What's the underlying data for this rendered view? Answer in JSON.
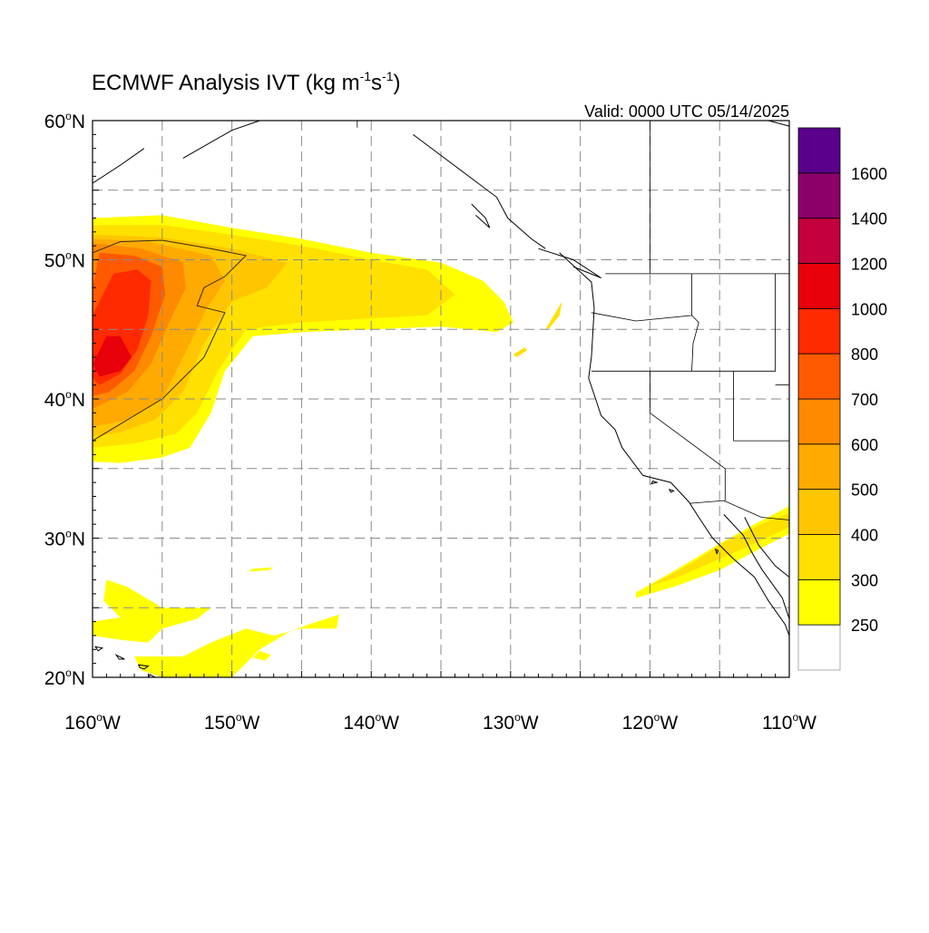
{
  "title": {
    "main": "ECMWF Analysis IVT (kg m",
    "exp1": "-1",
    "mid": "s",
    "exp2": "-1",
    "close": ")"
  },
  "valid_label": "Valid: 0000 UTC 05/14/2025",
  "map": {
    "lon_range": [
      -160,
      -110
    ],
    "lat_range": [
      20,
      60
    ],
    "grid_lons": [
      -155,
      -150,
      -145,
      -140,
      -135,
      -130,
      -125,
      -120,
      -115
    ],
    "grid_lats": [
      25,
      30,
      35,
      40,
      45,
      50,
      55
    ],
    "grid_style": "dashed",
    "lat_ticks": [
      {
        "lat": 60,
        "deg": "60",
        "suffix": "N"
      },
      {
        "lat": 50,
        "deg": "50",
        "suffix": "N"
      },
      {
        "lat": 40,
        "deg": "40",
        "suffix": "N"
      },
      {
        "lat": 30,
        "deg": "30",
        "suffix": "N"
      },
      {
        "lat": 20,
        "deg": "20",
        "suffix": "N"
      }
    ],
    "lon_ticks": [
      {
        "lon": -160,
        "deg": "160",
        "suffix": "W"
      },
      {
        "lon": -150,
        "deg": "150",
        "suffix": "W"
      },
      {
        "lon": -140,
        "deg": "140",
        "suffix": "W"
      },
      {
        "lon": -130,
        "deg": "130",
        "suffix": "W"
      },
      {
        "lon": -120,
        "deg": "120",
        "suffix": "W"
      },
      {
        "lon": -110,
        "deg": "110",
        "suffix": "W"
      }
    ]
  },
  "colorbar": {
    "levels": [
      "250",
      "300",
      "400",
      "500",
      "600",
      "700",
      "800",
      "1000",
      "1200",
      "1400",
      "1600"
    ],
    "colors_bottom_to_top": [
      "#ffffff",
      "#ffff00",
      "#ffe000",
      "#ffc600",
      "#ffaa00",
      "#ff8a00",
      "#ff5a00",
      "#ff2a00",
      "#e8000a",
      "#c4003c",
      "#8c006a",
      "#5a008c"
    ]
  },
  "ivt_regions": [
    {
      "name": "east-pacific-plume-300",
      "color": "#ffff00",
      "points": [
        [
          -160,
          53
        ],
        [
          -155,
          53.2
        ],
        [
          -150,
          52.3
        ],
        [
          -145,
          51.5
        ],
        [
          -140,
          50.5
        ],
        [
          -135,
          49.8
        ],
        [
          -132,
          48.5
        ],
        [
          -130.5,
          47
        ],
        [
          -129.8,
          45.5
        ],
        [
          -131,
          44.8
        ],
        [
          -135,
          45.2
        ],
        [
          -140,
          45
        ],
        [
          -145,
          44.8
        ],
        [
          -148.5,
          44.5
        ],
        [
          -150.5,
          42
        ],
        [
          -151.5,
          39
        ],
        [
          -153,
          36.5
        ],
        [
          -155,
          35.8
        ],
        [
          -158,
          35.4
        ],
        [
          -160,
          35.5
        ]
      ]
    },
    {
      "name": "east-pacific-plume-400",
      "color": "#ffe000",
      "points": [
        [
          -160,
          52.5
        ],
        [
          -155,
          52.5
        ],
        [
          -150,
          51.8
        ],
        [
          -145,
          51
        ],
        [
          -140,
          50
        ],
        [
          -136,
          49.3
        ],
        [
          -134,
          47.5
        ],
        [
          -136,
          46
        ],
        [
          -140,
          45.8
        ],
        [
          -145,
          45.5
        ],
        [
          -149,
          45
        ],
        [
          -151,
          42
        ],
        [
          -152.5,
          39
        ],
        [
          -154,
          37.5
        ],
        [
          -157,
          36.8
        ],
        [
          -160,
          36.5
        ]
      ]
    },
    {
      "name": "east-pacific-plume-500",
      "color": "#ffc600",
      "points": [
        [
          -160,
          51.8
        ],
        [
          -155,
          51.6
        ],
        [
          -150,
          50.8
        ],
        [
          -146,
          49.8
        ],
        [
          -147.5,
          48
        ],
        [
          -150,
          47
        ],
        [
          -152,
          44
        ],
        [
          -153.5,
          40.5
        ],
        [
          -155.5,
          38.5
        ],
        [
          -158,
          37.6
        ],
        [
          -160,
          37.3
        ]
      ]
    },
    {
      "name": "east-pacific-plume-600",
      "color": "#ffaa00",
      "points": [
        [
          -160,
          51.5
        ],
        [
          -156,
          51.3
        ],
        [
          -151.5,
          50.3
        ],
        [
          -150.5,
          48.5
        ],
        [
          -151.8,
          46.5
        ],
        [
          -153.5,
          43
        ],
        [
          -155,
          40
        ],
        [
          -157.5,
          38.5
        ],
        [
          -160,
          38
        ]
      ]
    },
    {
      "name": "east-pacific-plume-700",
      "color": "#ff8a00",
      "points": [
        [
          -160,
          51.2
        ],
        [
          -156.5,
          50.8
        ],
        [
          -153.5,
          49.8
        ],
        [
          -153.3,
          48
        ],
        [
          -154.5,
          45.5
        ],
        [
          -155.8,
          42.5
        ],
        [
          -157.5,
          40.5
        ],
        [
          -160,
          39.3
        ]
      ]
    },
    {
      "name": "east-pacific-plume-800",
      "color": "#ff5a00",
      "points": [
        [
          -159.5,
          50.5
        ],
        [
          -157,
          50.3
        ],
        [
          -155,
          49.5
        ],
        [
          -154.8,
          47.5
        ],
        [
          -155.8,
          44.5
        ],
        [
          -157,
          42
        ],
        [
          -158.8,
          40.5
        ],
        [
          -160,
          40.2
        ],
        [
          -160,
          48
        ]
      ]
    },
    {
      "name": "east-pacific-plume-1000",
      "color": "#ff2a00",
      "points": [
        [
          -158.5,
          49
        ],
        [
          -156.8,
          49.3
        ],
        [
          -155.8,
          48.5
        ],
        [
          -156,
          46
        ],
        [
          -156.8,
          43.5
        ],
        [
          -158,
          41.8
        ],
        [
          -159.5,
          41
        ],
        [
          -160,
          41.5
        ],
        [
          -160,
          46
        ]
      ]
    },
    {
      "name": "east-pacific-plume-1200",
      "color": "#e8000a",
      "points": [
        [
          -159,
          44.5
        ],
        [
          -158,
          44.5
        ],
        [
          -157.2,
          43
        ],
        [
          -158,
          42
        ],
        [
          -159.5,
          41.6
        ],
        [
          -160,
          42.5
        ]
      ]
    },
    {
      "name": "offshore-streak-1",
      "color": "#ffe000",
      "points": [
        [
          -127.5,
          45
        ],
        [
          -126.6,
          46.5
        ],
        [
          -126.3,
          47
        ],
        [
          -126.5,
          46
        ],
        [
          -127.2,
          45.1
        ]
      ]
    },
    {
      "name": "offshore-streak-2",
      "color": "#ffe000",
      "points": [
        [
          -129.8,
          43.2
        ],
        [
          -129,
          43.7
        ],
        [
          -128.8,
          43.5
        ],
        [
          -129.6,
          43
        ]
      ]
    },
    {
      "name": "baja-plume-300",
      "color": "#ffff00",
      "points": [
        [
          -121,
          26.1
        ],
        [
          -118,
          27.8
        ],
        [
          -115,
          29.6
        ],
        [
          -112.5,
          31
        ],
        [
          -110,
          32.3
        ],
        [
          -110,
          30.3
        ],
        [
          -112,
          29.3
        ],
        [
          -115,
          27.7
        ],
        [
          -118,
          26.6
        ],
        [
          -121,
          25.7
        ]
      ]
    },
    {
      "name": "baja-plume-400",
      "color": "#ffe000",
      "points": [
        [
          -120,
          26.6
        ],
        [
          -117,
          28.2
        ],
        [
          -114.5,
          29.8
        ],
        [
          -112,
          31
        ],
        [
          -110,
          31.8
        ],
        [
          -110,
          30.8
        ],
        [
          -112.5,
          29.6
        ],
        [
          -115,
          28.5
        ],
        [
          -118,
          27.2
        ]
      ]
    },
    {
      "name": "hawaii-moisture-1",
      "color": "#ffff00",
      "points": [
        [
          -159,
          27
        ],
        [
          -157.5,
          26.5
        ],
        [
          -155,
          25
        ],
        [
          -151.5,
          25
        ],
        [
          -152.5,
          24.2
        ],
        [
          -155,
          23.5
        ],
        [
          -156,
          22.5
        ],
        [
          -158,
          22.7
        ],
        [
          -160,
          23
        ],
        [
          -160,
          24
        ],
        [
          -158,
          24.3
        ],
        [
          -159.2,
          25.5
        ]
      ]
    },
    {
      "name": "hawaii-moisture-2",
      "color": "#ffff00",
      "points": [
        [
          -157,
          21.5
        ],
        [
          -153.5,
          21.5
        ],
        [
          -151.5,
          22.5
        ],
        [
          -149,
          23.5
        ],
        [
          -147,
          23
        ],
        [
          -145,
          23.5
        ],
        [
          -142.5,
          23.5
        ],
        [
          -142.3,
          24.5
        ],
        [
          -144.5,
          23.8
        ],
        [
          -146,
          23.2
        ],
        [
          -148,
          22
        ],
        [
          -150,
          20
        ],
        [
          -155,
          20
        ],
        [
          -156.5,
          20.5
        ]
      ]
    },
    {
      "name": "hawaii-moisture-3",
      "color": "#ffff00",
      "points": [
        [
          -148.5,
          21.4
        ],
        [
          -148,
          21.9
        ],
        [
          -147.2,
          21.6
        ],
        [
          -147.6,
          21.2
        ]
      ]
    },
    {
      "name": "hawaii-moisture-4",
      "color": "#ffff00",
      "points": [
        [
          -148.5,
          27.8
        ],
        [
          -147,
          27.9
        ],
        [
          -147.3,
          27.7
        ],
        [
          -148.8,
          27.6
        ]
      ]
    }
  ],
  "ivt_contours": [
    [
      [
        -160,
        37
      ],
      [
        -155,
        40
      ],
      [
        -152,
        43
      ],
      [
        -150.5,
        46.2
      ],
      [
        -152.5,
        46.7
      ],
      [
        -152,
        48
      ],
      [
        -150.5,
        48.8
      ],
      [
        -149,
        50.3
      ],
      [
        -151.5,
        50.8
      ],
      [
        -155,
        51.4
      ],
      [
        -158,
        51.3
      ],
      [
        -160,
        50.5
      ]
    ]
  ],
  "coastlines": [
    [
      [
        -126.5,
        50.5
      ],
      [
        -124.2,
        48.4
      ],
      [
        -124,
        46.5
      ],
      [
        -124.2,
        43
      ],
      [
        -124.4,
        41.5
      ],
      [
        -124,
        40.3
      ],
      [
        -123.5,
        38.8
      ],
      [
        -122.5,
        37.8
      ],
      [
        -122,
        36.5
      ],
      [
        -120.5,
        34.5
      ],
      [
        -118.5,
        34
      ],
      [
        -117.2,
        32.6
      ],
      [
        -116.5,
        31.5
      ],
      [
        -115.5,
        30
      ],
      [
        -114,
        28.5
      ],
      [
        -112.5,
        27.2
      ],
      [
        -111.5,
        25.5
      ],
      [
        -110.3,
        23.8
      ],
      [
        -110,
        23
      ]
    ],
    [
      [
        -114.7,
        31.7
      ],
      [
        -113.3,
        30.2
      ],
      [
        -112.7,
        29
      ],
      [
        -112,
        27.8
      ],
      [
        -110.5,
        25.7
      ],
      [
        -110,
        24.2
      ]
    ],
    [
      [
        -113.2,
        31.5
      ],
      [
        -112.2,
        29.5
      ],
      [
        -111,
        28
      ],
      [
        -110,
        27.2
      ]
    ],
    [
      [
        -153.5,
        57.3
      ],
      [
        -150,
        59.3
      ],
      [
        -148,
        60
      ]
    ],
    [
      [
        -160,
        55.5
      ],
      [
        -158,
        56.8
      ],
      [
        -156.3,
        58
      ]
    ],
    [
      [
        -137,
        59
      ],
      [
        -135,
        57.5
      ],
      [
        -133,
        56
      ],
      [
        -131,
        54.5
      ],
      [
        -130.2,
        53
      ],
      [
        -128.5,
        51.5
      ],
      [
        -127.5,
        50.8
      ]
    ],
    [
      [
        -128,
        50.8
      ],
      [
        -125.5,
        50
      ],
      [
        -123.5,
        48.7
      ],
      [
        -125.5,
        49.5
      ]
    ],
    [
      [
        -132.8,
        54
      ],
      [
        -131.8,
        53
      ],
      [
        -131.5,
        52.3
      ],
      [
        -132.5,
        53.2
      ]
    ],
    [
      [
        -111.5,
        60
      ],
      [
        -110,
        59.6
      ]
    ]
  ],
  "borders": [
    [
      [
        -123.2,
        49
      ],
      [
        -110,
        49
      ]
    ],
    [
      [
        -141,
        60
      ],
      [
        -141,
        59.5
      ]
    ],
    [
      [
        -117.1,
        32.5
      ],
      [
        -114.7,
        32.7
      ],
      [
        -112,
        31.5
      ],
      [
        -110,
        31.3
      ]
    ],
    [
      [
        -124.2,
        46.2
      ],
      [
        -121,
        45.6
      ],
      [
        -117,
        46
      ],
      [
        -117,
        49
      ]
    ],
    [
      [
        -124.2,
        42
      ],
      [
        -111,
        42
      ],
      [
        -111,
        45
      ],
      [
        -111,
        49
      ]
    ],
    [
      [
        -120,
        42
      ],
      [
        -120,
        39
      ],
      [
        -114.6,
        35
      ],
      [
        -114.6,
        32.7
      ]
    ],
    [
      [
        -117,
        46
      ],
      [
        -116.5,
        45.5
      ],
      [
        -116.9,
        44
      ],
      [
        -117,
        42
      ]
    ],
    [
      [
        -114,
        42
      ],
      [
        -114,
        37
      ],
      [
        -110,
        37
      ]
    ],
    [
      [
        -111,
        41
      ],
      [
        -110,
        41
      ]
    ],
    [
      [
        -120,
        49
      ],
      [
        -120,
        60
      ]
    ]
  ],
  "islands": [
    [
      [
        -155.9,
        20.2
      ],
      [
        -155.1,
        19.8
      ],
      [
        -154.8,
        19.5
      ],
      [
        -155.7,
        18.9
      ],
      [
        -156,
        19.6
      ]
    ],
    [
      [
        -156.7,
        20.9
      ],
      [
        -156,
        20.8
      ],
      [
        -156.3,
        20.6
      ],
      [
        -156.6,
        20.7
      ]
    ],
    [
      [
        -158.3,
        21.6
      ],
      [
        -157.7,
        21.3
      ],
      [
        -158.1,
        21.3
      ]
    ],
    [
      [
        -159.8,
        22.2
      ],
      [
        -159.3,
        22.1
      ],
      [
        -159.6,
        21.9
      ]
    ],
    [
      [
        -119.8,
        34.1
      ],
      [
        -119.5,
        34
      ],
      [
        -119.9,
        33.9
      ]
    ],
    [
      [
        -118.6,
        33.5
      ],
      [
        -118.3,
        33.4
      ],
      [
        -118.5,
        33.3
      ]
    ],
    [
      [
        -115.3,
        29.2
      ],
      [
        -115.1,
        29.1
      ],
      [
        -115.2,
        28.9
      ]
    ]
  ]
}
